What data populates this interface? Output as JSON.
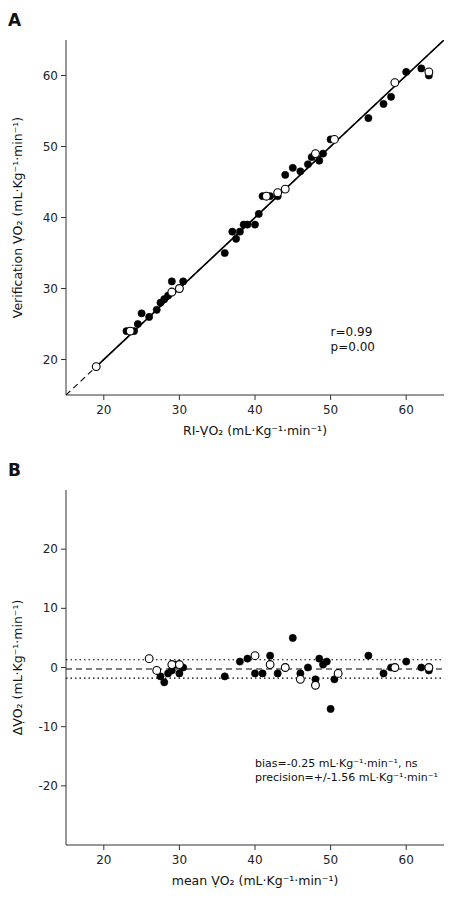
{
  "chart_data": [
    {
      "type": "scatter",
      "title": "A",
      "x_label": "RI-ṾO₂  (mL·Kg⁻¹·min⁻¹)",
      "y_label": "Verification ṾO₂ (mL·Kg⁻¹·min⁻¹)",
      "xlim": [
        15,
        65
      ],
      "ylim": [
        15,
        65
      ],
      "xticks": [
        20,
        30,
        40,
        50,
        60
      ],
      "yticks": [
        20,
        30,
        40,
        50,
        60
      ],
      "annotation": "r=0.99\np=0.00",
      "series": [
        {
          "type": "line",
          "line_style": "dashed",
          "color": "#000000",
          "x": [
            15,
            65
          ],
          "values": [
            15,
            65
          ]
        },
        {
          "type": "line",
          "line_style": "solid",
          "color": "#000000",
          "x": [
            19,
            65
          ],
          "values": [
            19,
            65
          ]
        },
        {
          "type": "scatter",
          "marker": "filled",
          "color": "#000000",
          "x": [
            23,
            24,
            24.5,
            25,
            26,
            27,
            27.5,
            28,
            28.5,
            29,
            30,
            30.5,
            36,
            37,
            37.5,
            38,
            38.5,
            39,
            40,
            40.5,
            41,
            42,
            43,
            44,
            45,
            46,
            47,
            47.5,
            48,
            48.5,
            49,
            50,
            55,
            57,
            58,
            60,
            62,
            63
          ],
          "values": [
            24,
            24,
            25,
            26.5,
            26,
            27,
            28,
            28.5,
            29,
            31,
            30,
            31,
            35,
            38,
            37,
            38,
            39,
            39,
            39,
            40.5,
            43,
            43,
            43,
            46,
            47,
            46.5,
            47.5,
            48.5,
            49,
            48,
            49,
            51,
            54,
            56,
            57,
            60.5,
            61,
            60
          ]
        },
        {
          "type": "scatter",
          "marker": "open",
          "color": "#000000",
          "x": [
            19,
            23.5,
            29,
            30,
            41.5,
            43,
            44,
            48,
            50.5,
            58.5,
            63
          ],
          "values": [
            19,
            24,
            29.5,
            30,
            43,
            43.5,
            44,
            49,
            51,
            59,
            60.5
          ]
        }
      ]
    },
    {
      "type": "scatter",
      "title": "B",
      "x_label": "mean ṾO₂  (mL·Kg⁻¹·min⁻¹)",
      "y_label": "ΔṾO₂ (mL·Kg⁻¹·min⁻¹)",
      "xlim": [
        15,
        65
      ],
      "ylim": [
        -30,
        30
      ],
      "xticks": [
        20,
        30,
        40,
        50,
        60
      ],
      "yticks": [
        -20,
        -10,
        0,
        10,
        20
      ],
      "annotation": "bias=-0.25 mL·Kg⁻¹·min⁻¹, ns\nprecision=+/-1.56 mL·Kg⁻¹·min⁻¹",
      "hlines": [
        {
          "value": -0.25,
          "line_style": "dashed",
          "color": "#000000"
        },
        {
          "value": 1.31,
          "line_style": "dotted",
          "color": "#000000"
        },
        {
          "value": -1.81,
          "line_style": "dotted",
          "color": "#000000"
        }
      ],
      "series": [
        {
          "type": "scatter",
          "marker": "filled",
          "color": "#000000",
          "x": [
            27,
            27.5,
            28,
            28.5,
            29,
            29.5,
            30,
            30.5,
            36,
            38,
            39,
            40,
            41,
            42,
            43,
            45,
            46,
            47,
            48,
            48.5,
            49,
            49.5,
            50,
            50.5,
            55,
            57,
            58,
            60,
            62,
            63
          ],
          "values": [
            -0.5,
            -1.5,
            -2.5,
            -1,
            -0.5,
            0.5,
            -1,
            0,
            -1.5,
            1,
            1.5,
            -1,
            -1,
            2,
            -1,
            5,
            -1,
            0,
            -2,
            1.5,
            0.5,
            1,
            -7,
            -2,
            2,
            -1,
            0,
            1,
            0,
            -0.5
          ]
        },
        {
          "type": "scatter",
          "marker": "open",
          "color": "#000000",
          "x": [
            26,
            27,
            29,
            30,
            40,
            42,
            44,
            46,
            48,
            51,
            58.5,
            63
          ],
          "values": [
            1.5,
            -0.5,
            0.5,
            0.5,
            2,
            0.5,
            0,
            -2,
            -3,
            -1,
            0,
            0
          ]
        }
      ]
    }
  ]
}
